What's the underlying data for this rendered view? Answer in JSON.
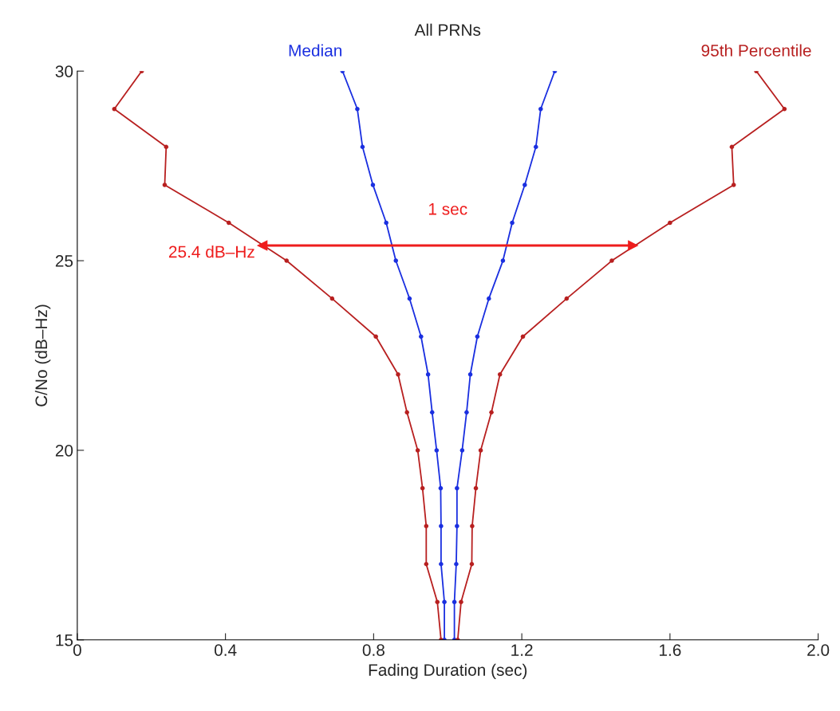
{
  "chart_data": {
    "type": "line",
    "title": "All PRNs",
    "xlabel": "Fading Duration (sec)",
    "ylabel": "C/No (dB–Hz)",
    "xlim": [
      0,
      2.0
    ],
    "xticks": [
      0,
      0.4,
      0.8,
      1.2,
      1.6,
      {
        "value": 2.0,
        "label": "2.0"
      }
    ],
    "ylim": [
      15,
      30
    ],
    "yticks": [
      15,
      20,
      25,
      30
    ],
    "grid": false,
    "legend": false,
    "marker": "circle",
    "line_style": "solid",
    "series": [
      {
        "name": "Median",
        "color": "#1a2fe0",
        "x": [
          0.716,
          0.756,
          0.77,
          0.798,
          0.834,
          0.86,
          0.897,
          0.928,
          0.947,
          0.958,
          0.97,
          0.981,
          0.982,
          0.982,
          0.991,
          0.991
        ],
        "values": [
          30,
          29,
          28,
          27,
          26,
          25,
          24,
          23,
          22,
          21,
          20,
          19,
          18,
          17,
          16,
          15
        ]
      },
      {
        "color": "#1a2fe0",
        "x": [
          1.289,
          1.251,
          1.238,
          1.208,
          1.174,
          1.149,
          1.111,
          1.08,
          1.061,
          1.051,
          1.039,
          1.025,
          1.025,
          1.023,
          1.018,
          1.018
        ],
        "values": [
          30,
          29,
          28,
          27,
          26,
          25,
          24,
          23,
          22,
          21,
          20,
          19,
          18,
          17,
          16,
          15
        ]
      },
      {
        "color": "#b82020",
        "x": [
          0.174,
          0.1,
          0.24,
          0.236,
          0.409,
          0.565,
          0.688,
          0.806,
          0.866,
          0.89,
          0.919,
          0.932,
          0.942,
          0.942,
          0.972,
          0.982
        ],
        "values": [
          30,
          29,
          28,
          27,
          26,
          25,
          24,
          23,
          22,
          21,
          20,
          19,
          18,
          17,
          16,
          15
        ]
      },
      {
        "name": "95th Percentile",
        "color": "#b82020",
        "x": [
          1.833,
          1.909,
          1.767,
          1.772,
          1.6,
          1.443,
          1.321,
          1.203,
          1.141,
          1.118,
          1.089,
          1.076,
          1.066,
          1.065,
          1.036,
          1.027
        ],
        "values": [
          30,
          29,
          28,
          27,
          26,
          25,
          24,
          23,
          22,
          21,
          20,
          19,
          18,
          17,
          16,
          15
        ]
      },
      {
        "type": "line",
        "marker": "triangle",
        "color": "#ee1c1c",
        "x": [
          0.5,
          1.5
        ],
        "values": [
          25.4,
          25.4
        ]
      }
    ],
    "annotations": [
      {
        "text": "25.4 dB–Hz",
        "x": 0.5,
        "y": 25.4
      },
      "1 sec"
    ]
  }
}
